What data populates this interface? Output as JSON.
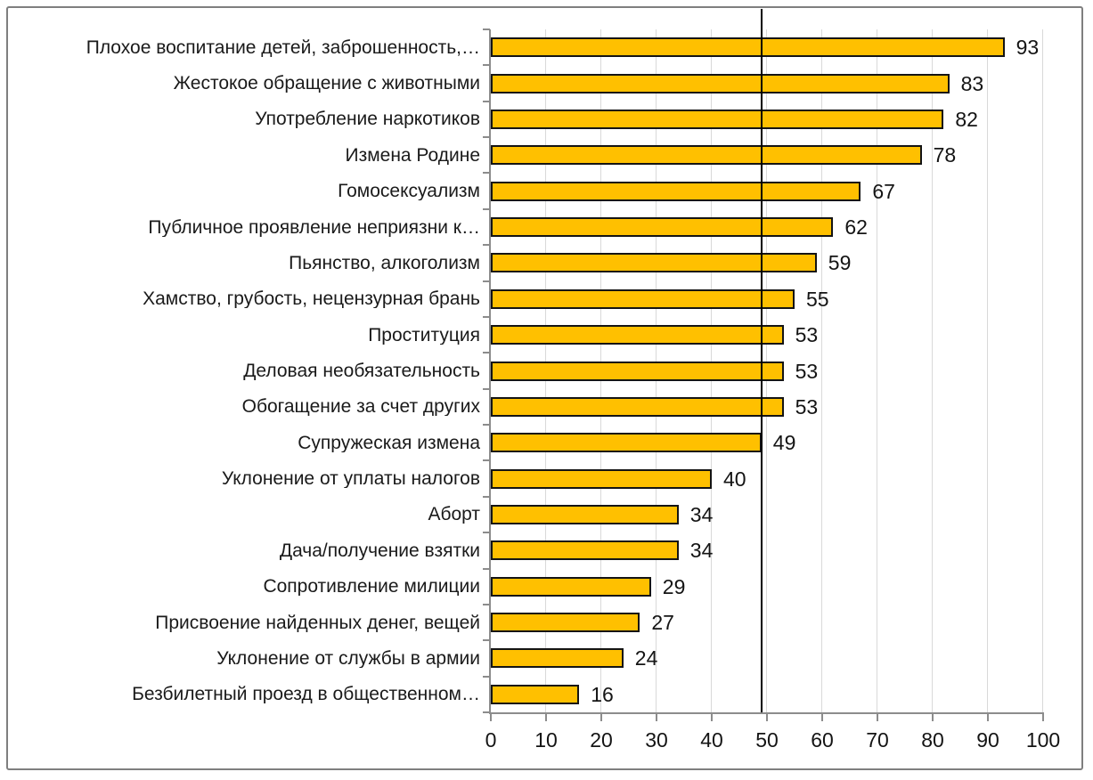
{
  "chart_data": {
    "type": "bar",
    "orientation": "horizontal",
    "title": "",
    "xlabel": "",
    "ylabel": "",
    "categories": [
      "Плохое воспитание детей, заброшенность,…",
      "Жестокое обращение с животными",
      "Употребление наркотиков",
      "Измена Родине",
      "Гомосексуализм",
      "Публичное проявление неприязни к…",
      "Пьянство, алкоголизм",
      "Хамство, грубость, нецензурная брань",
      "Проституция",
      "Деловая необязательность",
      "Обогащение за счет других",
      "Супружеская измена",
      "Уклонение от уплаты налогов",
      "Аборт",
      "Дача/получение взятки",
      "Сопротивление милиции",
      "Присвоение найденных денег, вещей",
      "Уклонение от службы в армии",
      "Безбилетный проезд в общественном…"
    ],
    "values": [
      93,
      83,
      82,
      78,
      67,
      62,
      59,
      55,
      53,
      53,
      53,
      49,
      40,
      34,
      34,
      29,
      27,
      24,
      16
    ],
    "data_labels_shown": true,
    "xlim": [
      0,
      100
    ],
    "x_ticks": [
      0,
      10,
      20,
      30,
      40,
      50,
      60,
      70,
      80,
      90,
      100
    ],
    "grid": "vertical-major",
    "legend": "none",
    "reference_line": {
      "value": 49,
      "color": "#000000"
    },
    "colors": {
      "bar_fill": "#FFC000",
      "bar_border": "#141414",
      "gridline": "#D9D9D9",
      "axis": "#8c8c8c",
      "text": "#1a1a1a",
      "frame_border": "#7f7f7f",
      "background": "#ffffff"
    }
  }
}
